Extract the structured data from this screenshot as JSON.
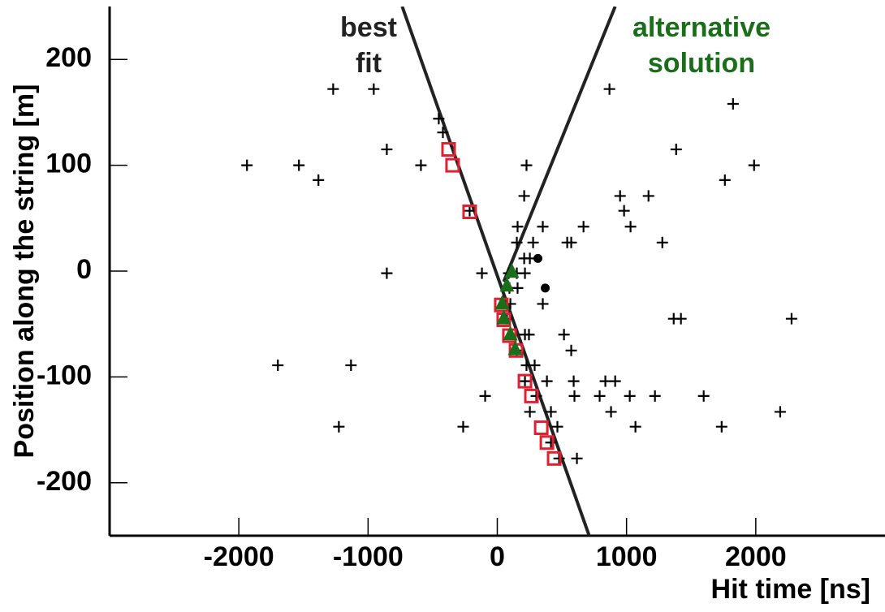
{
  "chart_data": {
    "type": "scatter",
    "xlabel": "Hit time [ns]",
    "ylabel": "Position along the string [m]",
    "xlim": [
      -3000,
      3000
    ],
    "ylim": [
      -250,
      250
    ],
    "xticks": [
      -2000,
      -1000,
      0,
      1000,
      2000
    ],
    "yticks": [
      -200,
      -100,
      0,
      100,
      200
    ],
    "annotations": [
      {
        "lines": [
          "best",
          "fit"
        ],
        "color": "#222222"
      },
      {
        "lines": [
          "alternative",
          "solution"
        ],
        "color": "#1a6e1a"
      }
    ],
    "series": [
      {
        "marker": "line",
        "color": "#222222",
        "x": [
          -736,
          711
        ],
        "y": [
          250,
          -250
        ]
      },
      {
        "marker": "line",
        "color": "#222222",
        "x": [
          50,
          912
        ],
        "y": [
          -10,
          250
        ]
      },
      {
        "marker": "cross",
        "color": "#000000",
        "x": [
          -1270,
          -956,
          868,
          1824,
          -453,
          -421,
          -855,
          1384,
          -1937,
          -1535,
          -591,
          226,
          1987,
          -1384,
          1761,
          208,
          950,
          1170,
          981,
          -214,
          157,
          352,
          667,
          1031,
          151,
          277,
          541,
          572,
          1277,
          208,
          252,
          -855,
          -119,
          88,
          151,
          214,
          157,
          94,
          352,
          101,
          1365,
          1421,
          2277,
          75,
          516,
          214,
          245,
          572,
          151,
          -1698,
          -1132,
          226,
          289,
          214,
          384,
          591,
          836,
          912,
          -94,
          302,
          597,
          792,
          1025,
          1220,
          1597,
          252,
          415,
          880,
          2189,
          -1226,
          -264,
          465,
          1069,
          1736,
          415,
          616,
          478
        ],
        "y": [
          172,
          172,
          172,
          158,
          144,
          131,
          115,
          115,
          100,
          100,
          100,
          100,
          100,
          86,
          86,
          71,
          71,
          71,
          57,
          57,
          42,
          42,
          42,
          42,
          27,
          27,
          27,
          27,
          27,
          12,
          12,
          -2,
          -2,
          -2,
          -2,
          -2,
          -16,
          -16,
          -31,
          -31,
          -45,
          -45,
          -45,
          -45,
          -60,
          -60,
          -60,
          -75,
          -75,
          -89,
          -89,
          -89,
          -89,
          -104,
          -104,
          -104,
          -104,
          -104,
          -118,
          -118,
          -118,
          -118,
          -118,
          -118,
          -118,
          -133,
          -133,
          -133,
          -133,
          -147,
          -147,
          -147,
          -147,
          -147,
          -162,
          -177,
          -177
        ]
      },
      {
        "marker": "square",
        "color": "#e02030",
        "x": [
          -377,
          -346,
          -214,
          31,
          50,
          94,
          145,
          214,
          264,
          340,
          384,
          440
        ],
        "y": [
          115,
          100,
          56,
          -32,
          -46,
          -61,
          -75,
          -104,
          -118,
          -148,
          -162,
          -177
        ]
      },
      {
        "marker": "triangle",
        "color": "#1a6e1a",
        "x": [
          113,
          75,
          38,
          50,
          101,
          138
        ],
        "y": [
          -1,
          -14,
          -31,
          -45,
          -60,
          -74
        ]
      },
      {
        "marker": "dot",
        "color": "#000000",
        "x": [
          314,
          371
        ],
        "y": [
          12,
          -16
        ]
      }
    ]
  }
}
